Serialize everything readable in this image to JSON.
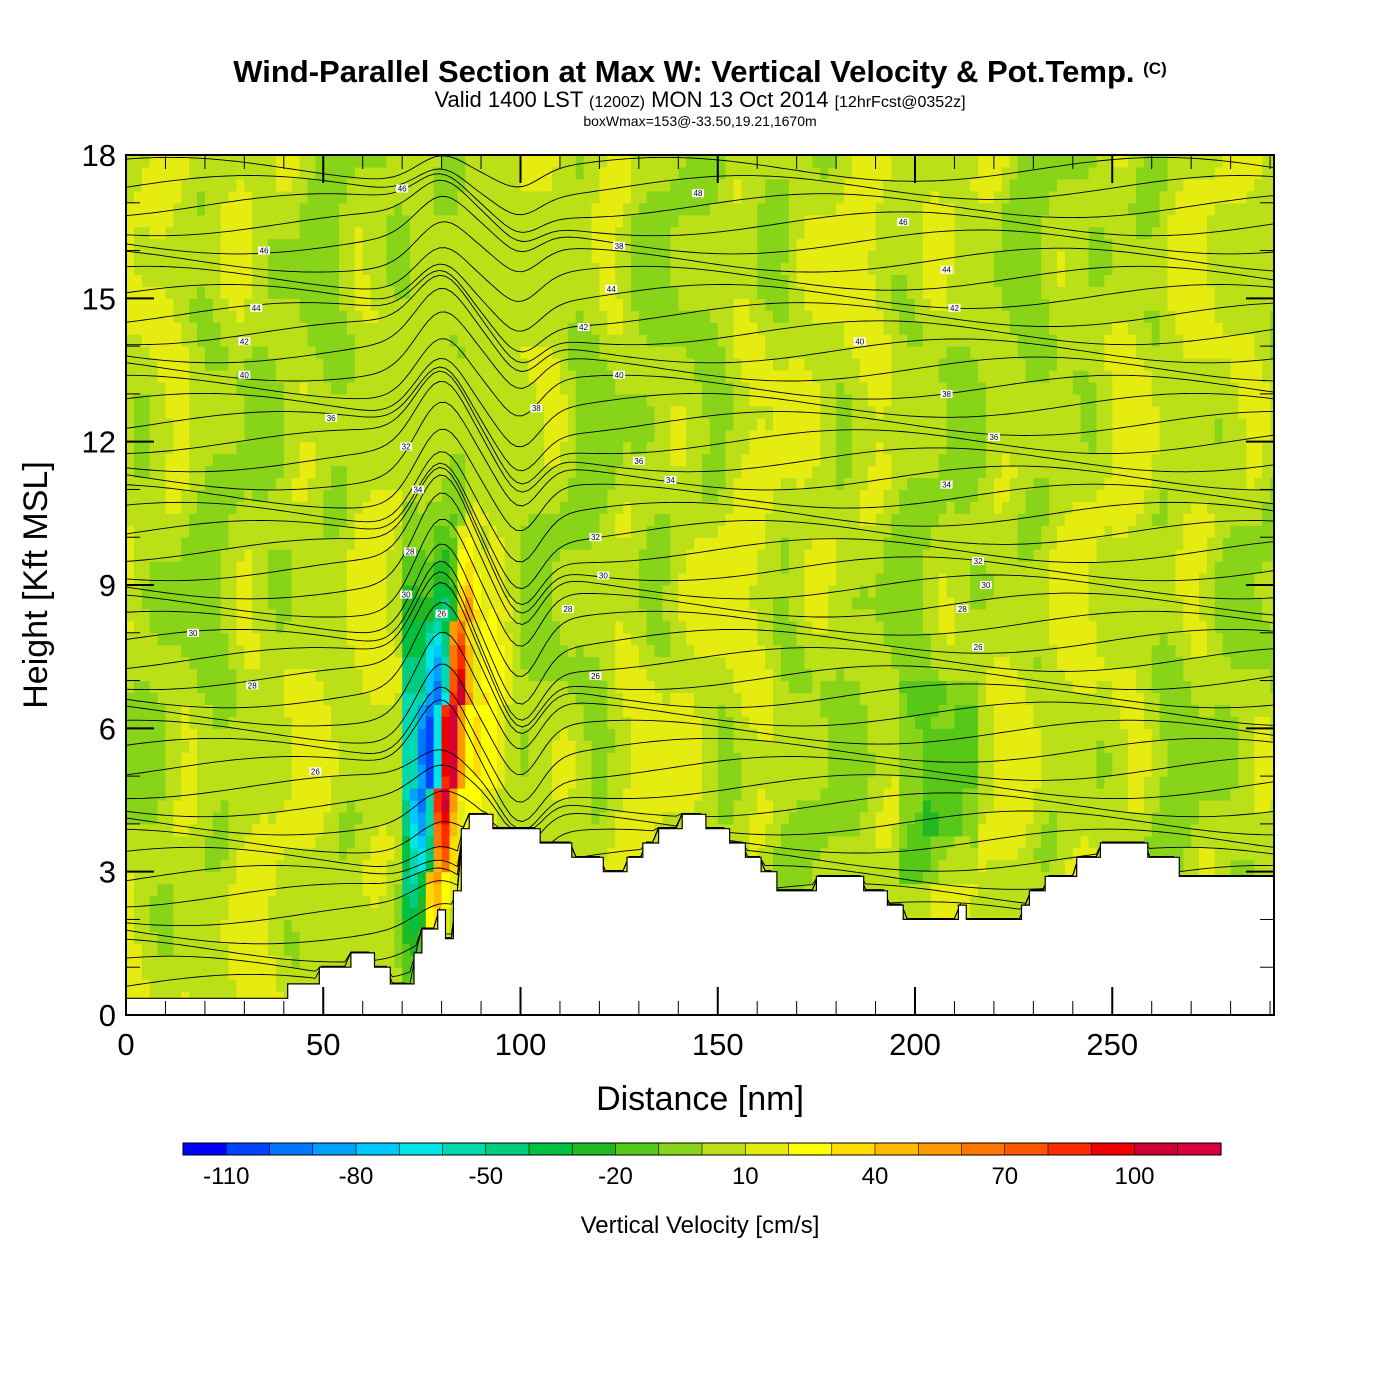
{
  "header": {
    "title": "Wind-Parallel Section at Max W: Vertical Velocity & Pot.Temp.",
    "copyright": "(C)",
    "subtitle_part1": "Valid 1400 LST",
    "subtitle_part2": "(1200Z)",
    "subtitle_part3": "MON 13 Oct 2014",
    "subtitle_part4": "[12hrFcst@0352z]",
    "subtitle2": "boxWmax=153@-33.50,19.21,1670m"
  },
  "chart_data": {
    "type": "heatmap",
    "xlabel": "Distance [nm]",
    "ylabel": "Height [Kft MSL]",
    "xlim": [
      0,
      291
    ],
    "ylim": [
      0,
      18
    ],
    "xticks": [
      0,
      50,
      100,
      150,
      200,
      250
    ],
    "yticks": [
      0,
      3,
      6,
      9,
      12,
      15,
      18
    ],
    "grid": false,
    "colorbar": {
      "label": "Vertical Velocity [cm/s]",
      "tick_labels": [
        "-110",
        "-80",
        "-50",
        "-20",
        "10",
        "40",
        "70",
        "100"
      ],
      "tick_values": [
        -110,
        -80,
        -50,
        -20,
        10,
        40,
        70,
        100
      ],
      "bounds": [
        -120,
        120
      ],
      "step": 10,
      "colors": [
        "#0000ff",
        "#0044ff",
        "#0077ff",
        "#00a0ff",
        "#00c8ff",
        "#00e6e6",
        "#00d8b0",
        "#00cc80",
        "#00c040",
        "#22b822",
        "#55c818",
        "#88d418",
        "#bbe018",
        "#e6ec10",
        "#ffff00",
        "#ffdd00",
        "#ffbb00",
        "#ff9900",
        "#ff7700",
        "#ff5500",
        "#ff2a00",
        "#ee0000",
        "#cc0033",
        "#d8003a"
      ]
    },
    "terrain": {
      "x": [
        0,
        41,
        41,
        49,
        49,
        57,
        57,
        63,
        63,
        67,
        67,
        73,
        73,
        75,
        75,
        79,
        79,
        81,
        81,
        83,
        83,
        85,
        85,
        87,
        87,
        93,
        93,
        105,
        105,
        113,
        113,
        121,
        121,
        127,
        127,
        131,
        131,
        135,
        135,
        141,
        141,
        147,
        147,
        153,
        153,
        157,
        157,
        161,
        161,
        165,
        165,
        175,
        175,
        187,
        187,
        193,
        193,
        197,
        197,
        211,
        211,
        213,
        213,
        213,
        213,
        227,
        227,
        229,
        229,
        233,
        233,
        241,
        241,
        247,
        247,
        259,
        259,
        267,
        267,
        291
      ],
      "height": [
        0.35,
        0.35,
        0.65,
        0.65,
        1.0,
        1.0,
        1.3,
        1.3,
        1.0,
        1.0,
        0.65,
        0.65,
        1.3,
        1.3,
        1.8,
        1.8,
        2.2,
        2.2,
        1.6,
        1.6,
        2.6,
        2.6,
        3.9,
        3.9,
        4.2,
        4.2,
        3.9,
        3.9,
        3.6,
        3.6,
        3.3,
        3.3,
        3.0,
        3.0,
        3.3,
        3.3,
        3.6,
        3.6,
        3.9,
        3.9,
        4.2,
        4.2,
        3.9,
        3.9,
        3.6,
        3.6,
        3.3,
        3.3,
        3.0,
        3.0,
        2.6,
        2.6,
        2.9,
        2.9,
        2.6,
        2.6,
        2.3,
        2.3,
        2.0,
        2.0,
        2.3,
        2.3,
        2.0,
        2.0,
        2.0,
        2.0,
        2.3,
        2.3,
        2.6,
        2.6,
        2.9,
        2.9,
        3.3,
        3.3,
        3.6,
        3.6,
        3.3,
        3.3,
        2.9,
        2.9
      ]
    },
    "wave_column": {
      "x": [
        72,
        74,
        76,
        78,
        80,
        82,
        84,
        86,
        88,
        90,
        92,
        94,
        96
      ],
      "w": [
        -60,
        -95,
        -110,
        -70,
        90,
        120,
        60,
        25,
        35,
        30,
        25,
        15,
        5
      ],
      "top_height": 9.0,
      "peak_height": 5.5
    },
    "contour_labels": [
      {
        "text": "46",
        "x": 70,
        "y": 17.3
      },
      {
        "text": "48",
        "x": 145,
        "y": 17.2
      },
      {
        "text": "46",
        "x": 35,
        "y": 16.0
      },
      {
        "text": "46",
        "x": 197,
        "y": 16.6
      },
      {
        "text": "38",
        "x": 125,
        "y": 16.1
      },
      {
        "text": "44",
        "x": 208,
        "y": 15.6
      },
      {
        "text": "44",
        "x": 123,
        "y": 15.2
      },
      {
        "text": "42",
        "x": 210,
        "y": 14.8
      },
      {
        "text": "44",
        "x": 33,
        "y": 14.8
      },
      {
        "text": "42",
        "x": 116,
        "y": 14.4
      },
      {
        "text": "42",
        "x": 30,
        "y": 14.1
      },
      {
        "text": "40",
        "x": 186,
        "y": 14.1
      },
      {
        "text": "40",
        "x": 125,
        "y": 13.4
      },
      {
        "text": "40",
        "x": 30,
        "y": 13.4
      },
      {
        "text": "38",
        "x": 208,
        "y": 13.0
      },
      {
        "text": "38",
        "x": 104,
        "y": 12.7
      },
      {
        "text": "36",
        "x": 52,
        "y": 12.5
      },
      {
        "text": "36",
        "x": 220,
        "y": 12.1
      },
      {
        "text": "32",
        "x": 71,
        "y": 11.9
      },
      {
        "text": "36",
        "x": 130,
        "y": 11.6
      },
      {
        "text": "34",
        "x": 138,
        "y": 11.2
      },
      {
        "text": "34",
        "x": 208,
        "y": 11.1
      },
      {
        "text": "34",
        "x": 74,
        "y": 11.0
      },
      {
        "text": "32",
        "x": 119,
        "y": 10.0
      },
      {
        "text": "28",
        "x": 72,
        "y": 9.7
      },
      {
        "text": "32",
        "x": 216,
        "y": 9.5
      },
      {
        "text": "30",
        "x": 121,
        "y": 9.2
      },
      {
        "text": "30",
        "x": 218,
        "y": 9.0
      },
      {
        "text": "30",
        "x": 71,
        "y": 8.8
      },
      {
        "text": "28",
        "x": 112,
        "y": 8.5
      },
      {
        "text": "28",
        "x": 212,
        "y": 8.5
      },
      {
        "text": "30",
        "x": 17,
        "y": 8.0
      },
      {
        "text": "26",
        "x": 216,
        "y": 7.7
      },
      {
        "text": "26",
        "x": 80,
        "y": 8.4
      },
      {
        "text": "28",
        "x": 32,
        "y": 6.9
      },
      {
        "text": "26",
        "x": 119,
        "y": 7.1
      },
      {
        "text": "26",
        "x": 48,
        "y": 5.1
      }
    ]
  }
}
